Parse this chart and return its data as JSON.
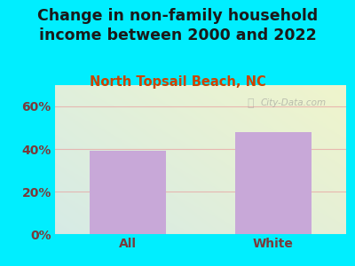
{
  "title": "Change in non-family household\nincome between 2000 and 2022",
  "subtitle": "North Topsail Beach, NC",
  "categories": [
    "All",
    "White"
  ],
  "values": [
    39,
    48
  ],
  "bar_color": "#c8a8d8",
  "title_color": "#1a1a1a",
  "subtitle_color": "#cc4400",
  "tick_label_color": "#7a3a3a",
  "background_outer": "#00eeff",
  "watermark": "City-Data.com",
  "ylim": [
    0,
    70
  ],
  "yticks": [
    0,
    20,
    40,
    60
  ],
  "ytick_labels": [
    "0%",
    "20%",
    "40%",
    "60%"
  ],
  "title_fontsize": 12.5,
  "subtitle_fontsize": 10.5,
  "tick_fontsize": 10,
  "grid_color": "#e8a0a0",
  "grid_alpha": 0.7
}
